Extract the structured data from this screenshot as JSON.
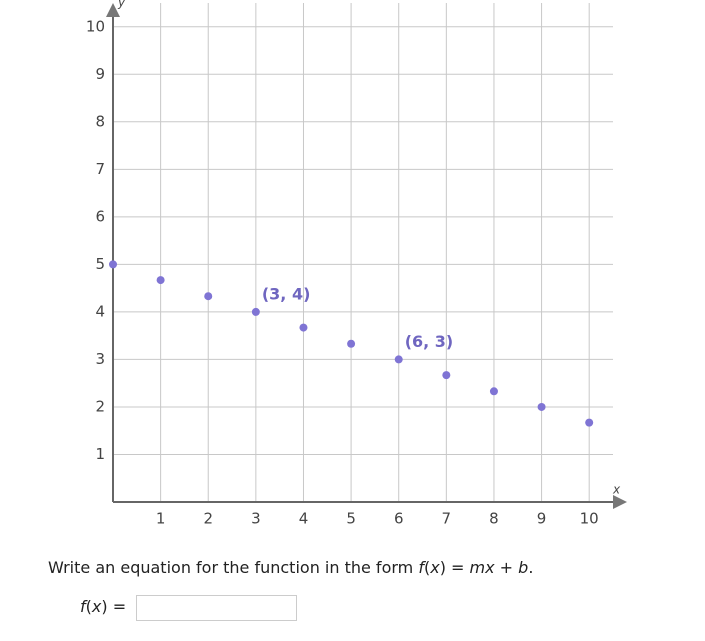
{
  "chart_data": {
    "type": "scatter",
    "x_label": "x",
    "y_label": "y",
    "x": [
      0,
      1,
      2,
      3,
      4,
      5,
      6,
      7,
      8,
      9,
      10
    ],
    "values": [
      5,
      4.67,
      4.33,
      4,
      3.67,
      3.33,
      3,
      2.67,
      2.33,
      2,
      1.67
    ],
    "color": "#7f74d4",
    "xlim": [
      0,
      10.5
    ],
    "ylim": [
      0,
      10.5
    ],
    "xticks": [
      1,
      2,
      3,
      4,
      5,
      6,
      7,
      8,
      9,
      10
    ],
    "yticks": [
      1,
      2,
      3,
      4,
      5,
      6,
      7,
      8,
      9,
      10
    ],
    "grid": true,
    "annotations": [
      {
        "text": "(3, 4)",
        "x": 3,
        "y": 4
      },
      {
        "text": "(6, 3)",
        "x": 6,
        "y": 3
      }
    ]
  },
  "question": {
    "parts": [
      "Write an equation for the function in the form ",
      "f",
      "(",
      "x",
      ") = ",
      "mx",
      " + ",
      "b",
      "."
    ]
  },
  "answer_label": {
    "parts": [
      "f",
      "(",
      "x",
      ") ="
    ]
  }
}
